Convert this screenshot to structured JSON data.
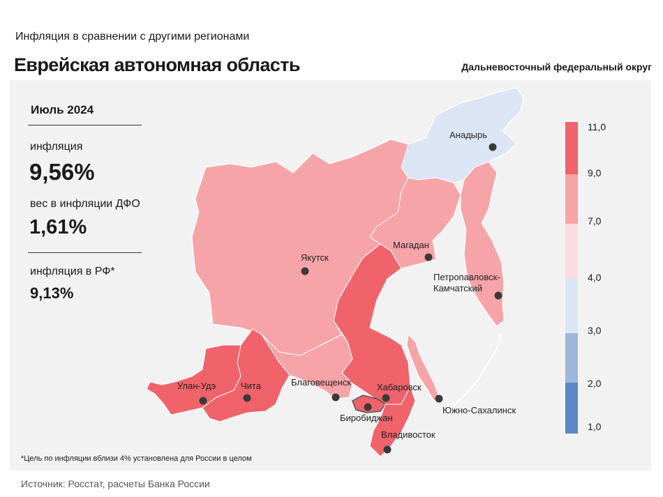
{
  "header": {
    "subtitle": "Инфляция  в сравнении  с другими  регионами",
    "title": "Еврейская автономная область",
    "district": "Дальневосточный федеральный округ"
  },
  "stats": {
    "period": "Июль 2024",
    "inflation_label": "инфляция",
    "inflation_value": "9,56%",
    "weight_label": "вес в инфляции  ДФО",
    "weight_value": "1,61%",
    "rf_label": "инфляция  в РФ*",
    "rf_value": "9,13%"
  },
  "legend": {
    "ticks": [
      "11,0",
      "9,0",
      "7,0",
      "4,0",
      "3,0",
      "2,0",
      "1,0"
    ],
    "colors": [
      "#f0636a",
      "#f6a4a8",
      "#f9dde0",
      "#dce5f4",
      "#9db7da",
      "#5b88c6"
    ]
  },
  "cities": [
    {
      "name": "Анадырь",
      "region_color": "#dce5f4"
    },
    {
      "name": "Магадан",
      "region_color": "#f6a4a8"
    },
    {
      "name": "Якутск",
      "region_color": "#f6a4a8"
    },
    {
      "name": "Петропавловск-",
      "name2": "Камчатский",
      "region_color": "#f6a4a8"
    },
    {
      "name": "Улан-Удэ",
      "region_color": "#f0636a"
    },
    {
      "name": "Чита",
      "region_color": "#f0636a"
    },
    {
      "name": "Благовещенск",
      "region_color": "#f6a4a8"
    },
    {
      "name": "Хабаровск",
      "region_color": "#f0636a"
    },
    {
      "name": "Биробиджан",
      "region_color": "#f0636a"
    },
    {
      "name": "Южно-Сахалинск",
      "region_color": "#f6a4a8"
    },
    {
      "name": "Владивосток",
      "region_color": "#f0636a"
    }
  ],
  "footnote": "*Цель по инфляции вблизи 4% установлена для России в целом",
  "source": "Источник: Росстат,  расчеты Банка  России"
}
